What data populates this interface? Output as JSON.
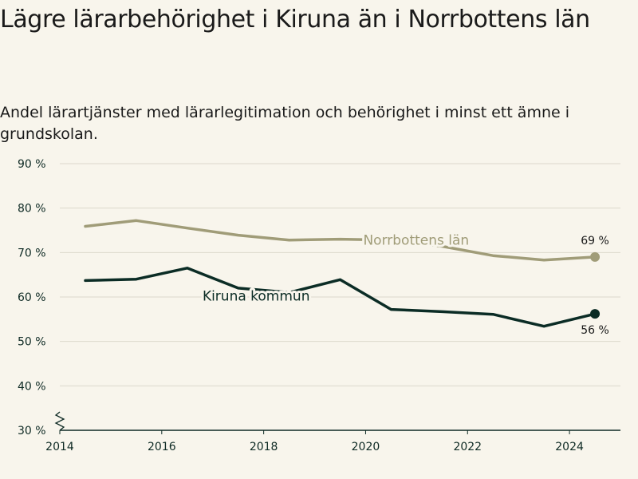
{
  "chart_data": {
    "type": "line",
    "title": "Lägre lärarbehörighet i Kiruna än i Norrbottens län",
    "subtitle": "Andel lärartjänster med lärarlegitimation och behörighet i minst ett ämne i grundskolan.",
    "xlabel": "",
    "ylabel": "",
    "x": [
      2014.5,
      2015.5,
      2016.5,
      2017.5,
      2018.5,
      2019.5,
      2020.5,
      2021.5,
      2022.5,
      2023.5,
      2024.5
    ],
    "xlim": [
      2014,
      2025
    ],
    "ylim": [
      30,
      90
    ],
    "y_ticks": [
      90,
      80,
      70,
      60,
      50,
      40,
      30
    ],
    "y_tick_labels": [
      "90 %",
      "80 %",
      "70 %",
      "60 %",
      "50 %",
      "40 %",
      "30 %"
    ],
    "x_ticks": [
      2014,
      2016,
      2018,
      2020,
      2022,
      2024
    ],
    "x_tick_labels": [
      "2014",
      "2016",
      "2018",
      "2020",
      "2022",
      "2024"
    ],
    "grid": true,
    "axis_break": true,
    "series": [
      {
        "name": "Norrbottens län",
        "color": "#a09c78",
        "values": [
          75.9,
          77.2,
          75.5,
          73.9,
          72.8,
          73.0,
          72.8,
          71.4,
          69.3,
          68.3,
          69.0
        ],
        "end_label": "69 %"
      },
      {
        "name": "Kiruna kommun",
        "color": "#0b2c25",
        "values": [
          63.7,
          64.0,
          66.5,
          62.0,
          61.0,
          63.9,
          57.2,
          56.7,
          56.1,
          53.4,
          56.2
        ],
        "end_label": "56 %"
      }
    ]
  }
}
